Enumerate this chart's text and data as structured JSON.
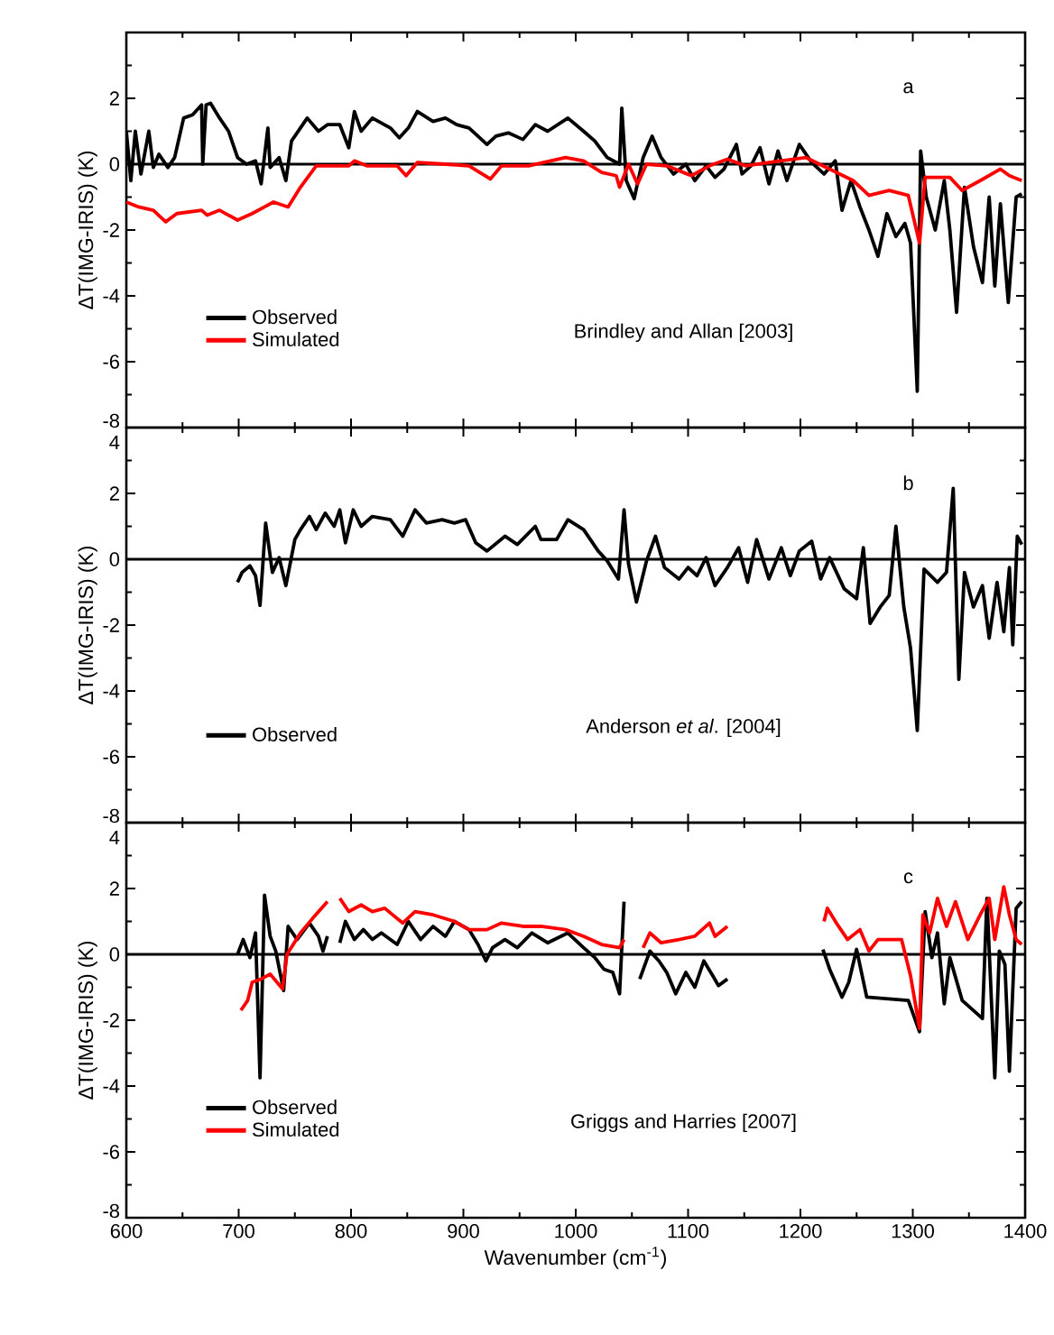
{
  "chart_data": [
    {
      "type": "line",
      "ylabel": "ΔT(IMG-IRIS) (K)",
      "xlim": [
        600,
        1400
      ],
      "ylim": [
        -8,
        4
      ],
      "xticks": [
        600,
        700,
        800,
        900,
        1000,
        1100,
        1200,
        1300,
        1400
      ],
      "yticks": [
        -8,
        -6,
        -4,
        -2,
        0,
        2,
        {
          "value": 4,
          "label": null
        }
      ],
      "tick_labels": "y",
      "legend": "bottom left",
      "annotations": [
        "a",
        "Brindley and Allan [2003]"
      ],
      "ref_lines": [
        {
          "axis": "y",
          "value": 0,
          "color": "#000000"
        }
      ],
      "series": [
        {
          "name": "Observed",
          "color": "#000000",
          "x": [
            600,
            604,
            608,
            613,
            620,
            624,
            629,
            637,
            643,
            651,
            659,
            667,
            668,
            671,
            675,
            683,
            691,
            699,
            707,
            715,
            720,
            726,
            728,
            736,
            742,
            747,
            761,
            771,
            779,
            790,
            798,
            803,
            809,
            819,
            835,
            843,
            851,
            859,
            873,
            884,
            894,
            905,
            921,
            929,
            940,
            953,
            964,
            975,
            993,
            1007,
            1017,
            1028,
            1039,
            1041,
            1045,
            1052,
            1060,
            1068,
            1076,
            1087,
            1098,
            1106,
            1116,
            1124,
            1132,
            1143,
            1148,
            1156,
            1164,
            1172,
            1180,
            1188,
            1199,
            1210,
            1221,
            1231,
            1237,
            1245,
            1253,
            1261,
            1269,
            1277,
            1285,
            1293,
            1298,
            1304,
            1307,
            1312,
            1320,
            1328,
            1333,
            1339,
            1346,
            1354,
            1362,
            1368,
            1373,
            1378,
            1385,
            1392,
            1397
          ],
          "values": [
            1.0,
            -0.5,
            1.0,
            -0.3,
            1.0,
            -0.1,
            0.3,
            -0.1,
            0.2,
            1.4,
            1.5,
            1.8,
            0.0,
            1.8,
            1.85,
            1.4,
            1.0,
            0.2,
            0.0,
            0.1,
            -0.6,
            1.1,
            -0.1,
            0.2,
            -0.5,
            0.7,
            1.4,
            1.0,
            1.2,
            1.2,
            0.5,
            1.6,
            1.0,
            1.4,
            1.1,
            0.8,
            1.1,
            1.6,
            1.3,
            1.4,
            1.2,
            1.1,
            0.6,
            0.85,
            0.95,
            0.75,
            1.2,
            1.0,
            1.4,
            1.0,
            0.7,
            0.2,
            0.0,
            1.7,
            -0.5,
            -1.05,
            0.2,
            0.85,
            0.2,
            -0.3,
            0.0,
            -0.5,
            -0.05,
            -0.4,
            -0.15,
            0.6,
            -0.3,
            -0.05,
            0.5,
            -0.6,
            0.4,
            -0.5,
            0.6,
            0.05,
            -0.3,
            0.1,
            -1.4,
            -0.5,
            -1.3,
            -2.0,
            -2.8,
            -1.5,
            -2.2,
            -1.8,
            -2.4,
            -6.9,
            0.4,
            -1.0,
            -2.0,
            -0.5,
            -2.0,
            -4.5,
            -0.7,
            -2.5,
            -3.6,
            -1.0,
            -3.7,
            -1.2,
            -4.2,
            -1.0,
            -0.9
          ]
        },
        {
          "name": "Simulated",
          "color": "#ff0000",
          "x": [
            600,
            611,
            624,
            635,
            645,
            667,
            672,
            683,
            699,
            712,
            723,
            731,
            744,
            755,
            769,
            798,
            803,
            814,
            841,
            849,
            859,
            884,
            905,
            924,
            934,
            958,
            991,
            1007,
            1023,
            1036,
            1039,
            1047,
            1055,
            1063,
            1081,
            1103,
            1119,
            1135,
            1151,
            1172,
            1205,
            1226,
            1247,
            1261,
            1279,
            1296,
            1306,
            1311,
            1333,
            1344,
            1360,
            1378,
            1386,
            1397
          ],
          "values": [
            -1.15,
            -1.3,
            -1.4,
            -1.75,
            -1.5,
            -1.4,
            -1.55,
            -1.4,
            -1.7,
            -1.5,
            -1.3,
            -1.15,
            -1.3,
            -0.7,
            -0.05,
            -0.05,
            0.1,
            -0.05,
            -0.05,
            -0.35,
            0.05,
            0.0,
            -0.05,
            -0.45,
            -0.05,
            -0.05,
            0.2,
            0.1,
            -0.25,
            -0.35,
            -0.7,
            0.0,
            -0.6,
            0.0,
            -0.05,
            -0.35,
            -0.05,
            0.15,
            -0.05,
            0.05,
            0.2,
            -0.15,
            -0.5,
            -0.95,
            -0.8,
            -0.95,
            -2.4,
            -0.4,
            -0.4,
            -0.8,
            -0.5,
            -0.15,
            -0.35,
            -0.5
          ]
        }
      ]
    },
    {
      "type": "line",
      "ylabel": "ΔT(IMG-IRIS) (K)",
      "xlim": [
        600,
        1400
      ],
      "ylim": [
        -8,
        4
      ],
      "xticks": [
        600,
        700,
        800,
        900,
        1000,
        1100,
        1200,
        1300,
        1400
      ],
      "yticks": [
        -8,
        -6,
        -4,
        -2,
        0,
        2,
        4
      ],
      "tick_labels": "y",
      "legend": "bottom left",
      "annotations": [
        "b",
        "Anderson *et al*. [2004]"
      ],
      "ref_lines": [
        {
          "axis": "y",
          "value": 0,
          "color": "#000000"
        }
      ],
      "series": [
        {
          "name": "Observed",
          "color": "#000000",
          "x": [
            699,
            703,
            710,
            715,
            719,
            724,
            730,
            736,
            742,
            750,
            755,
            763,
            769,
            777,
            785,
            790,
            795,
            802,
            809,
            819,
            835,
            846,
            857,
            867,
            881,
            892,
            902,
            911,
            921,
            937,
            948,
            964,
            969,
            983,
            993,
            1007,
            1020,
            1028,
            1038,
            1043,
            1047,
            1054,
            1063,
            1071,
            1079,
            1092,
            1100,
            1108,
            1116,
            1124,
            1135,
            1145,
            1153,
            1161,
            1172,
            1183,
            1191,
            1199,
            1210,
            1218,
            1226,
            1239,
            1250,
            1256,
            1262,
            1271,
            1279,
            1285,
            1292,
            1298,
            1304,
            1310,
            1322,
            1330,
            1336,
            1341,
            1346,
            1354,
            1362,
            1368,
            1375,
            1381,
            1386,
            1389,
            1393,
            1397
          ],
          "values": [
            -0.7,
            -0.4,
            -0.2,
            -0.5,
            -1.4,
            1.1,
            -0.4,
            0.05,
            -0.8,
            0.6,
            0.9,
            1.3,
            0.9,
            1.4,
            1.0,
            1.5,
            0.5,
            1.5,
            1.0,
            1.3,
            1.2,
            0.7,
            1.5,
            1.1,
            1.2,
            1.1,
            1.2,
            0.5,
            0.25,
            0.7,
            0.45,
            1.0,
            0.6,
            0.6,
            1.2,
            0.9,
            0.25,
            -0.05,
            -0.6,
            1.5,
            -0.15,
            -1.3,
            -0.05,
            0.7,
            -0.25,
            -0.6,
            -0.25,
            -0.5,
            0.05,
            -0.8,
            -0.25,
            0.35,
            -0.7,
            0.6,
            -0.6,
            0.35,
            -0.5,
            0.25,
            0.55,
            -0.6,
            0.05,
            -0.9,
            -1.2,
            0.35,
            -1.95,
            -1.45,
            -1.1,
            1.0,
            -1.45,
            -2.7,
            -5.2,
            -0.3,
            -0.7,
            -0.4,
            2.15,
            -3.65,
            -0.4,
            -1.45,
            -0.8,
            -2.4,
            -0.7,
            -2.2,
            -0.25,
            -2.6,
            0.7,
            0.45
          ]
        }
      ]
    },
    {
      "type": "line",
      "xlabel": "Wavenumber (cm$^{-1}$)",
      "ylabel": "ΔT(IMG-IRIS) (K)",
      "xlim": [
        600,
        1400
      ],
      "ylim": [
        -8,
        4
      ],
      "xticks": [
        600,
        700,
        800,
        900,
        1000,
        1100,
        1200,
        1300,
        1400
      ],
      "yticks": [
        -8,
        -6,
        -4,
        -2,
        0,
        2,
        4
      ],
      "legend": "bottom left",
      "annotations": [
        "c",
        "Griggs and Harries [2007]"
      ],
      "ref_lines": [
        {
          "axis": "y",
          "value": 0,
          "color": "#000000"
        }
      ],
      "series": [
        {
          "name": "Observed",
          "color": "#000000",
          "x": [
            699,
            704,
            710,
            715,
            719,
            723,
            728,
            733,
            740,
            744,
            752,
            763,
            771,
            775,
            779,
            785,
            790,
            795,
            803,
            811,
            819,
            827,
            841,
            851,
            862,
            873,
            884,
            892,
            905,
            913,
            920,
            926,
            937,
            948,
            961,
            975,
            993,
            1007,
            1017,
            1025,
            1033,
            1039,
            1043,
            1050,
            1057,
            1066,
            1074,
            1081,
            1089,
            1098,
            1106,
            1114,
            1122,
            1127,
            1135,
            1180,
            1220,
            1226,
            1237,
            1243,
            1250,
            1259,
            1296,
            1306,
            1311,
            1317,
            1322,
            1328,
            1333,
            1344,
            1362,
            1366,
            1373,
            1377,
            1382,
            1386,
            1392,
            1397
          ],
          "values": [
            0.0,
            0.45,
            -0.1,
            0.65,
            -3.75,
            1.8,
            0.55,
            0.1,
            -1.1,
            0.85,
            0.45,
            0.95,
            0.55,
            0.1,
            0.55,
            null,
            0.35,
            1.0,
            0.45,
            0.75,
            0.45,
            0.65,
            0.3,
            1.0,
            0.45,
            0.85,
            0.55,
            1.0,
            0.75,
            0.3,
            -0.2,
            0.2,
            0.45,
            0.2,
            0.65,
            0.35,
            0.65,
            0.2,
            -0.1,
            -0.45,
            -0.55,
            -1.2,
            1.6,
            null,
            -0.75,
            0.1,
            -0.2,
            -0.55,
            -1.2,
            -0.55,
            -1.0,
            -0.2,
            -0.65,
            -0.95,
            -0.75,
            null,
            0.15,
            -0.45,
            -1.3,
            -0.85,
            0.15,
            -1.3,
            -1.4,
            -2.35,
            1.3,
            -0.1,
            0.65,
            -1.5,
            -0.1,
            -1.4,
            -1.95,
            1.7,
            -3.75,
            0.1,
            -0.3,
            -3.55,
            1.4,
            1.6
          ]
        },
        {
          "name": "Simulated",
          "color": "#ff0000",
          "x": [
            702,
            708,
            712,
            720,
            728,
            739,
            743,
            755,
            766,
            779,
            785,
            790,
            798,
            809,
            819,
            830,
            846,
            857,
            873,
            892,
            905,
            921,
            934,
            953,
            969,
            991,
            1007,
            1023,
            1039,
            1043,
            1050,
            1060,
            1066,
            1076,
            1092,
            1106,
            1119,
            1124,
            1135,
            1180,
            1221,
            1224,
            1232,
            1242,
            1253,
            1261,
            1269,
            1290,
            1298,
            1306,
            1309,
            1315,
            1322,
            1330,
            1338,
            1349,
            1360,
            1368,
            1373,
            1381,
            1386,
            1392,
            1397
          ],
          "values": [
            -1.7,
            -1.4,
            -0.85,
            -0.75,
            -0.6,
            -1.05,
            0.0,
            0.65,
            1.1,
            1.6,
            null,
            1.7,
            1.3,
            1.5,
            1.3,
            1.4,
            0.95,
            1.3,
            1.2,
            1.0,
            0.75,
            0.75,
            0.95,
            0.85,
            0.85,
            0.75,
            0.55,
            0.3,
            0.2,
            0.45,
            null,
            0.2,
            0.65,
            0.35,
            0.45,
            0.55,
            0.95,
            0.55,
            0.85,
            null,
            1.0,
            1.4,
            0.95,
            0.45,
            0.75,
            0.1,
            0.45,
            0.45,
            -0.65,
            -2.25,
            1.2,
            0.65,
            1.7,
            0.85,
            1.6,
            0.45,
            1.2,
            1.7,
            0.45,
            2.05,
            1.2,
            0.45,
            0.3
          ]
        }
      ]
    }
  ]
}
